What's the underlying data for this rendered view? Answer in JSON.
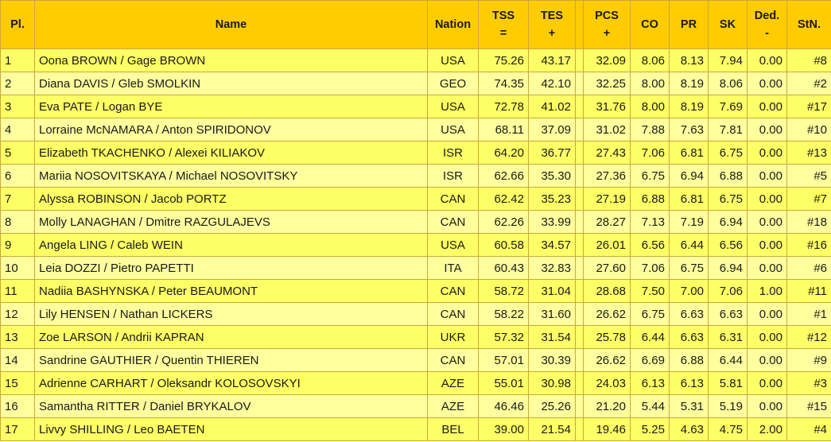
{
  "headers": {
    "pl": "Pl.",
    "name": "Name",
    "nation": "Nation",
    "tss": [
      "TSS",
      "="
    ],
    "tes": [
      "TES",
      "+"
    ],
    "pcs": [
      "PCS",
      "+"
    ],
    "co": "CO",
    "pr": "PR",
    "sk": "SK",
    "ded": [
      "Ded.",
      "-"
    ],
    "stn": "StN."
  },
  "rows": [
    {
      "pl": "1",
      "name": "Oona BROWN / Gage BROWN",
      "nation": "USA",
      "tss": "75.26",
      "tes": "43.17",
      "pcs": "32.09",
      "co": "8.06",
      "pr": "8.13",
      "sk": "7.94",
      "ded": "0.00",
      "stn": "#8"
    },
    {
      "pl": "2",
      "name": "Diana DAVIS / Gleb SMOLKIN",
      "nation": "GEO",
      "tss": "74.35",
      "tes": "42.10",
      "pcs": "32.25",
      "co": "8.00",
      "pr": "8.19",
      "sk": "8.06",
      "ded": "0.00",
      "stn": "#2"
    },
    {
      "pl": "3",
      "name": "Eva PATE / Logan BYE",
      "nation": "USA",
      "tss": "72.78",
      "tes": "41.02",
      "pcs": "31.76",
      "co": "8.00",
      "pr": "8.19",
      "sk": "7.69",
      "ded": "0.00",
      "stn": "#17"
    },
    {
      "pl": "4",
      "name": "Lorraine McNAMARA / Anton SPIRIDONOV",
      "nation": "USA",
      "tss": "68.11",
      "tes": "37.09",
      "pcs": "31.02",
      "co": "7.88",
      "pr": "7.63",
      "sk": "7.81",
      "ded": "0.00",
      "stn": "#10"
    },
    {
      "pl": "5",
      "name": "Elizabeth TKACHENKO / Alexei KILIAKOV",
      "nation": "ISR",
      "tss": "64.20",
      "tes": "36.77",
      "pcs": "27.43",
      "co": "7.06",
      "pr": "6.81",
      "sk": "6.75",
      "ded": "0.00",
      "stn": "#13"
    },
    {
      "pl": "6",
      "name": "Mariia NOSOVITSKAYA / Michael NOSOVITSKY",
      "nation": "ISR",
      "tss": "62.66",
      "tes": "35.30",
      "pcs": "27.36",
      "co": "6.75",
      "pr": "6.94",
      "sk": "6.88",
      "ded": "0.00",
      "stn": "#5"
    },
    {
      "pl": "7",
      "name": "Alyssa ROBINSON / Jacob PORTZ",
      "nation": "CAN",
      "tss": "62.42",
      "tes": "35.23",
      "pcs": "27.19",
      "co": "6.88",
      "pr": "6.81",
      "sk": "6.75",
      "ded": "0.00",
      "stn": "#7"
    },
    {
      "pl": "8",
      "name": "Molly LANAGHAN / Dmitre RAZGULAJEVS",
      "nation": "CAN",
      "tss": "62.26",
      "tes": "33.99",
      "pcs": "28.27",
      "co": "7.13",
      "pr": "7.19",
      "sk": "6.94",
      "ded": "0.00",
      "stn": "#18"
    },
    {
      "pl": "9",
      "name": "Angela LING / Caleb WEIN",
      "nation": "USA",
      "tss": "60.58",
      "tes": "34.57",
      "pcs": "26.01",
      "co": "6.56",
      "pr": "6.44",
      "sk": "6.56",
      "ded": "0.00",
      "stn": "#16"
    },
    {
      "pl": "10",
      "name": "Leia DOZZI / Pietro PAPETTI",
      "nation": "ITA",
      "tss": "60.43",
      "tes": "32.83",
      "pcs": "27.60",
      "co": "7.06",
      "pr": "6.75",
      "sk": "6.94",
      "ded": "0.00",
      "stn": "#6"
    },
    {
      "pl": "11",
      "name": "Nadiia BASHYNSKA / Peter BEAUMONT",
      "nation": "CAN",
      "tss": "58.72",
      "tes": "31.04",
      "pcs": "28.68",
      "co": "7.50",
      "pr": "7.00",
      "sk": "7.06",
      "ded": "1.00",
      "stn": "#11"
    },
    {
      "pl": "12",
      "name": "Lily HENSEN / Nathan LICKERS",
      "nation": "CAN",
      "tss": "58.22",
      "tes": "31.60",
      "pcs": "26.62",
      "co": "6.75",
      "pr": "6.63",
      "sk": "6.63",
      "ded": "0.00",
      "stn": "#1"
    },
    {
      "pl": "13",
      "name": "Zoe LARSON / Andrii KAPRAN",
      "nation": "UKR",
      "tss": "57.32",
      "tes": "31.54",
      "pcs": "25.78",
      "co": "6.44",
      "pr": "6.63",
      "sk": "6.31",
      "ded": "0.00",
      "stn": "#12"
    },
    {
      "pl": "14",
      "name": "Sandrine GAUTHIER / Quentin THIEREN",
      "nation": "CAN",
      "tss": "57.01",
      "tes": "30.39",
      "pcs": "26.62",
      "co": "6.69",
      "pr": "6.88",
      "sk": "6.44",
      "ded": "0.00",
      "stn": "#9"
    },
    {
      "pl": "15",
      "name": "Adrienne CARHART / Oleksandr KOLOSOVSKYI",
      "nation": "AZE",
      "tss": "55.01",
      "tes": "30.98",
      "pcs": "24.03",
      "co": "6.13",
      "pr": "6.13",
      "sk": "5.81",
      "ded": "0.00",
      "stn": "#3"
    },
    {
      "pl": "16",
      "name": "Samantha RITTER / Daniel BRYKALOV",
      "nation": "AZE",
      "tss": "46.46",
      "tes": "25.26",
      "pcs": "21.20",
      "co": "5.44",
      "pr": "5.31",
      "sk": "5.19",
      "ded": "0.00",
      "stn": "#15"
    },
    {
      "pl": "17",
      "name": "Livvy SHILLING / Leo BAETEN",
      "nation": "BEL",
      "tss": "39.00",
      "tes": "21.54",
      "pcs": "19.46",
      "co": "5.25",
      "pr": "4.63",
      "sk": "4.75",
      "ded": "2.00",
      "stn": "#4"
    }
  ],
  "colors": {
    "header_bg": "#ffcc00",
    "row_odd_bg": "#ffff66",
    "row_even_bg": "#ffff9e"
  }
}
